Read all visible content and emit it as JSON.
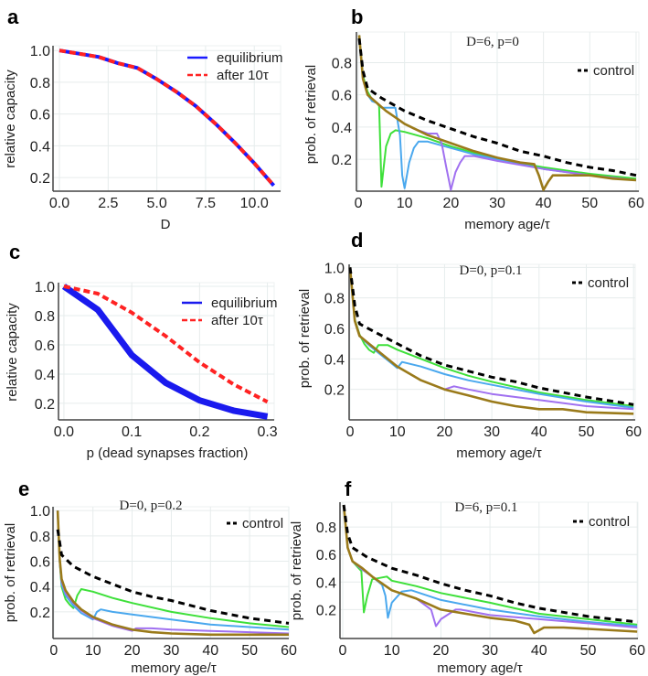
{
  "chart_data": [
    {
      "panel_label": "a",
      "type": "line",
      "title": "",
      "xlabel": "D",
      "ylabel": "relative capacity",
      "xlim": [
        -0.33,
        11.35
      ],
      "ylim": [
        0.114,
        1.03
      ],
      "grid": true,
      "xticks": [
        "0.0",
        "2.5",
        "5.0",
        "7.5",
        "10.0"
      ],
      "yticks": [
        "0.2",
        "0.4",
        "0.6",
        "0.8",
        "1.0"
      ],
      "legend": {
        "position": "top-right",
        "entries": [
          0,
          1
        ]
      },
      "series": [
        {
          "name": "equilibrium",
          "color": "#1a1aff",
          "style": "solid",
          "x": [
            0,
            1,
            2,
            3,
            4,
            5,
            6,
            7,
            8,
            9,
            10,
            11
          ],
          "y": [
            1.0,
            0.98,
            0.96,
            0.92,
            0.89,
            0.82,
            0.74,
            0.65,
            0.54,
            0.42,
            0.29,
            0.15
          ]
        },
        {
          "name": "after 10τ",
          "color": "#ff2222",
          "style": "dashed",
          "x": [
            0,
            1,
            2,
            3,
            4,
            5,
            6,
            7,
            8,
            9,
            10,
            11
          ],
          "y": [
            1.0,
            0.98,
            0.96,
            0.92,
            0.89,
            0.82,
            0.74,
            0.65,
            0.54,
            0.42,
            0.29,
            0.15
          ]
        }
      ]
    },
    {
      "panel_label": "b",
      "type": "line",
      "title": "D=6, p=0",
      "xlabel": "memory age/τ",
      "ylabel": "prob. of retrieval",
      "xlim": [
        -0.4,
        60.6
      ],
      "ylim": [
        0.002,
        0.99
      ],
      "grid": true,
      "xticks": [
        "0",
        "10",
        "20",
        "30",
        "40",
        "50",
        "60"
      ],
      "yticks": [
        "0.2",
        "0.4",
        "0.6",
        "0.8"
      ],
      "legend": {
        "position": "top-right",
        "entries": [
          4
        ]
      },
      "series": [
        {
          "color": "#3ee03a",
          "style": "solid",
          "x": [
            0.2,
            1,
            2,
            3,
            4,
            4.5,
            5,
            6,
            7,
            8,
            10,
            15,
            20,
            25,
            30,
            40,
            50,
            60
          ],
          "y": [
            0.97,
            0.72,
            0.62,
            0.57,
            0.55,
            0.53,
            0.03,
            0.28,
            0.36,
            0.38,
            0.37,
            0.33,
            0.28,
            0.24,
            0.2,
            0.15,
            0.11,
            0.08
          ]
        },
        {
          "color": "#4aa8ee",
          "style": "solid",
          "x": [
            0.2,
            1,
            2,
            3,
            4,
            5,
            6,
            8,
            9,
            9.5,
            10,
            11,
            12,
            13,
            15,
            20,
            25,
            30,
            40,
            50,
            60
          ],
          "y": [
            0.97,
            0.7,
            0.6,
            0.56,
            0.55,
            0.52,
            0.52,
            0.52,
            0.35,
            0.1,
            0.02,
            0.18,
            0.27,
            0.31,
            0.31,
            0.27,
            0.23,
            0.2,
            0.14,
            0.1,
            0.07
          ]
        },
        {
          "color": "#a070f0",
          "style": "solid",
          "x": [
            0.2,
            1,
            2,
            4,
            6,
            8,
            10,
            12,
            15,
            17,
            18,
            19,
            20,
            21,
            22,
            23,
            25,
            30,
            40,
            50,
            60
          ],
          "y": [
            0.97,
            0.7,
            0.6,
            0.55,
            0.5,
            0.46,
            0.42,
            0.39,
            0.36,
            0.36,
            0.3,
            0.15,
            0.01,
            0.12,
            0.18,
            0.22,
            0.22,
            0.19,
            0.14,
            0.1,
            0.07
          ]
        },
        {
          "color": "#9a7a1a",
          "style": "solid",
          "x": [
            0.2,
            1,
            2,
            4,
            6,
            8,
            10,
            15,
            20,
            25,
            30,
            35,
            38,
            39,
            40,
            41,
            42,
            44,
            50,
            55,
            60
          ],
          "y": [
            0.97,
            0.7,
            0.6,
            0.55,
            0.5,
            0.46,
            0.42,
            0.35,
            0.3,
            0.25,
            0.21,
            0.18,
            0.17,
            0.1,
            0.01,
            0.06,
            0.1,
            0.1,
            0.1,
            0.08,
            0.07
          ]
        },
        {
          "name": "control",
          "color": "#000000",
          "style": "dashed",
          "x": [
            0.2,
            1,
            2,
            5,
            10,
            15,
            20,
            25,
            30,
            35,
            40,
            45,
            50,
            55,
            60
          ],
          "y": [
            0.95,
            0.75,
            0.64,
            0.58,
            0.5,
            0.44,
            0.39,
            0.34,
            0.3,
            0.25,
            0.22,
            0.18,
            0.15,
            0.13,
            0.1
          ]
        }
      ]
    },
    {
      "panel_label": "c",
      "type": "line",
      "title": "",
      "xlabel": "p (dead synapses fraction)",
      "ylabel": "relative capacity",
      "xlim": [
        -0.008,
        0.31
      ],
      "ylim": [
        0.087,
        1.025
      ],
      "grid": true,
      "xticks": [
        "0.0",
        "0.1",
        "0.2",
        "0.3"
      ],
      "yticks": [
        "0.2",
        "0.4",
        "0.6",
        "0.8",
        "1.0"
      ],
      "legend": {
        "position": "top-right",
        "entries": [
          0,
          1
        ]
      },
      "series": [
        {
          "name": "equilibrium",
          "color": "#1a1aee",
          "style": "thick",
          "x": [
            0,
            0.05,
            0.1,
            0.15,
            0.2,
            0.25,
            0.3
          ],
          "y": [
            1.0,
            0.84,
            0.53,
            0.34,
            0.22,
            0.15,
            0.11
          ]
        },
        {
          "name": "after 10τ",
          "color": "#ff2222",
          "style": "dashed",
          "x": [
            0,
            0.05,
            0.1,
            0.15,
            0.2,
            0.25,
            0.3
          ],
          "y": [
            1.0,
            0.95,
            0.82,
            0.66,
            0.48,
            0.33,
            0.21
          ]
        }
      ]
    },
    {
      "panel_label": "d",
      "type": "line",
      "title": "D=0, p=0.1",
      "xlabel": "memory age/τ",
      "ylabel": "prob. of retrieval",
      "xlim": [
        -0.2,
        60.35
      ],
      "ylim": [
        0.0,
        1.02
      ],
      "grid": true,
      "xticks": [
        "0",
        "10",
        "20",
        "30",
        "40",
        "50",
        "60"
      ],
      "yticks": [
        "0.2",
        "0.4",
        "0.6",
        "0.8",
        "1.0"
      ],
      "legend": {
        "position": "top-right",
        "entries": [
          4
        ]
      },
      "series": [
        {
          "color": "#3ee03a",
          "style": "solid",
          "x": [
            0,
            1,
            2,
            3,
            4,
            5,
            6,
            8,
            10,
            15,
            20,
            25,
            30,
            40,
            50,
            60
          ],
          "y": [
            1.0,
            0.66,
            0.56,
            0.5,
            0.46,
            0.44,
            0.49,
            0.49,
            0.46,
            0.4,
            0.34,
            0.29,
            0.25,
            0.18,
            0.13,
            0.09
          ]
        },
        {
          "color": "#4aa8ee",
          "style": "solid",
          "x": [
            0,
            1,
            2,
            4,
            6,
            8,
            10,
            11,
            15,
            20,
            25,
            30,
            40,
            50,
            60
          ],
          "y": [
            1.0,
            0.65,
            0.55,
            0.49,
            0.44,
            0.39,
            0.34,
            0.38,
            0.35,
            0.3,
            0.26,
            0.23,
            0.17,
            0.12,
            0.08
          ]
        },
        {
          "color": "#a070f0",
          "style": "solid",
          "x": [
            0,
            1,
            2,
            4,
            6,
            10,
            15,
            20,
            22,
            25,
            30,
            40,
            50,
            60
          ],
          "y": [
            1.0,
            0.65,
            0.55,
            0.5,
            0.45,
            0.35,
            0.26,
            0.2,
            0.22,
            0.2,
            0.17,
            0.13,
            0.09,
            0.07
          ]
        },
        {
          "color": "#9a7a1a",
          "style": "solid",
          "x": [
            0,
            1,
            2,
            4,
            6,
            10,
            15,
            20,
            25,
            30,
            35,
            40,
            45,
            50,
            60
          ],
          "y": [
            1.0,
            0.65,
            0.55,
            0.5,
            0.45,
            0.35,
            0.26,
            0.2,
            0.16,
            0.12,
            0.09,
            0.07,
            0.07,
            0.05,
            0.04
          ]
        },
        {
          "name": "control",
          "color": "#000000",
          "style": "dashed",
          "x": [
            0,
            1,
            2,
            5,
            10,
            15,
            20,
            25,
            30,
            35,
            40,
            50,
            60
          ],
          "y": [
            1.0,
            0.75,
            0.63,
            0.58,
            0.5,
            0.42,
            0.36,
            0.32,
            0.28,
            0.25,
            0.21,
            0.15,
            0.1
          ]
        }
      ]
    },
    {
      "panel_label": "e",
      "type": "line",
      "title": "D=0, p=0.2",
      "xlabel": "memory age/τ",
      "ylabel": "prob. of retrieval",
      "xlim": [
        -0.2,
        60
      ],
      "ylim": [
        -0.01,
        1.03
      ],
      "grid": true,
      "xticks": [
        "0",
        "10",
        "20",
        "30",
        "40",
        "50",
        "60"
      ],
      "yticks": [
        "0.2",
        "0.4",
        "0.6",
        "0.8",
        "1.0"
      ],
      "legend": {
        "position": "top-right",
        "entries": [
          4
        ]
      },
      "series": [
        {
          "color": "#3ee03a",
          "style": "solid",
          "x": [
            1,
            1.5,
            2,
            3,
            4,
            5,
            6,
            7,
            10,
            15,
            20,
            30,
            40,
            50,
            60
          ],
          "y": [
            1.0,
            0.6,
            0.4,
            0.3,
            0.26,
            0.23,
            0.33,
            0.38,
            0.36,
            0.31,
            0.27,
            0.2,
            0.15,
            0.11,
            0.08
          ]
        },
        {
          "color": "#4aa8ee",
          "style": "solid",
          "x": [
            1,
            1.5,
            2,
            3,
            5,
            7,
            10,
            11,
            12,
            15,
            20,
            30,
            40,
            50,
            60
          ],
          "y": [
            1.0,
            0.6,
            0.42,
            0.33,
            0.25,
            0.19,
            0.14,
            0.2,
            0.22,
            0.2,
            0.18,
            0.14,
            0.1,
            0.08,
            0.06
          ]
        },
        {
          "color": "#a070f0",
          "style": "solid",
          "x": [
            1,
            1.5,
            2,
            3,
            5,
            7,
            10,
            15,
            20,
            21,
            25,
            30,
            40,
            50,
            60
          ],
          "y": [
            1.0,
            0.6,
            0.44,
            0.35,
            0.27,
            0.21,
            0.15,
            0.09,
            0.05,
            0.07,
            0.07,
            0.06,
            0.05,
            0.04,
            0.03
          ]
        },
        {
          "color": "#9a7a1a",
          "style": "solid",
          "x": [
            1,
            1.5,
            2,
            3,
            5,
            7,
            10,
            15,
            20,
            25,
            30,
            40,
            50,
            60
          ],
          "y": [
            1.0,
            0.62,
            0.46,
            0.37,
            0.28,
            0.22,
            0.16,
            0.1,
            0.06,
            0.04,
            0.03,
            0.02,
            0.02,
            0.02
          ]
        },
        {
          "name": "control",
          "color": "#000000",
          "style": "dashed",
          "x": [
            1,
            1.5,
            2,
            5,
            10,
            15,
            20,
            25,
            30,
            40,
            50,
            60
          ],
          "y": [
            0.85,
            0.75,
            0.65,
            0.56,
            0.48,
            0.42,
            0.36,
            0.32,
            0.29,
            0.21,
            0.15,
            0.11
          ]
        }
      ]
    },
    {
      "panel_label": "f",
      "type": "line",
      "title": "D=6, p=0.1",
      "xlabel": "memory age/τ",
      "ylabel": "prob. of retrieval",
      "xlim": [
        -0.56,
        60.15
      ],
      "ylim": [
        -0.01,
        0.98
      ],
      "grid": true,
      "xticks": [
        "0",
        "10",
        "20",
        "30",
        "40",
        "50",
        "60"
      ],
      "yticks": [
        "0.2",
        "0.4",
        "0.6",
        "0.8"
      ],
      "legend": {
        "position": "top-right",
        "entries": [
          4
        ]
      },
      "series": [
        {
          "color": "#3ee03a",
          "style": "solid",
          "x": [
            0.2,
            1,
            2,
            3,
            3.8,
            4.3,
            5,
            6,
            9,
            10,
            15,
            20,
            30,
            40,
            50,
            60
          ],
          "y": [
            0.96,
            0.65,
            0.55,
            0.51,
            0.48,
            0.18,
            0.3,
            0.42,
            0.44,
            0.41,
            0.37,
            0.32,
            0.25,
            0.17,
            0.13,
            0.09
          ]
        },
        {
          "color": "#4aa8ee",
          "style": "solid",
          "x": [
            0.2,
            1,
            2,
            4,
            6,
            8,
            8.7,
            9.2,
            10,
            12,
            14,
            20,
            30,
            40,
            50,
            60
          ],
          "y": [
            0.96,
            0.65,
            0.55,
            0.49,
            0.44,
            0.38,
            0.3,
            0.14,
            0.25,
            0.33,
            0.34,
            0.27,
            0.2,
            0.15,
            0.11,
            0.08
          ]
        },
        {
          "color": "#a070f0",
          "style": "solid",
          "x": [
            0.2,
            1,
            2,
            4,
            6,
            10,
            15,
            18,
            19,
            20,
            23,
            24,
            30,
            40,
            50,
            60
          ],
          "y": [
            0.96,
            0.65,
            0.55,
            0.49,
            0.44,
            0.34,
            0.28,
            0.2,
            0.08,
            0.13,
            0.2,
            0.2,
            0.16,
            0.13,
            0.1,
            0.07
          ]
        },
        {
          "color": "#9a7a1a",
          "style": "solid",
          "x": [
            0.2,
            1,
            2,
            4,
            6,
            10,
            15,
            20,
            25,
            30,
            35,
            38,
            39,
            41,
            45,
            50,
            60
          ],
          "y": [
            0.96,
            0.65,
            0.55,
            0.5,
            0.44,
            0.34,
            0.28,
            0.2,
            0.17,
            0.14,
            0.12,
            0.09,
            0.03,
            0.07,
            0.07,
            0.06,
            0.04
          ]
        },
        {
          "name": "control",
          "color": "#000000",
          "style": "dashed",
          "x": [
            0.2,
            1,
            2,
            5,
            10,
            15,
            20,
            25,
            30,
            35,
            40,
            50,
            60
          ],
          "y": [
            0.96,
            0.75,
            0.65,
            0.58,
            0.5,
            0.45,
            0.39,
            0.34,
            0.3,
            0.25,
            0.21,
            0.15,
            0.11
          ]
        }
      ]
    }
  ]
}
